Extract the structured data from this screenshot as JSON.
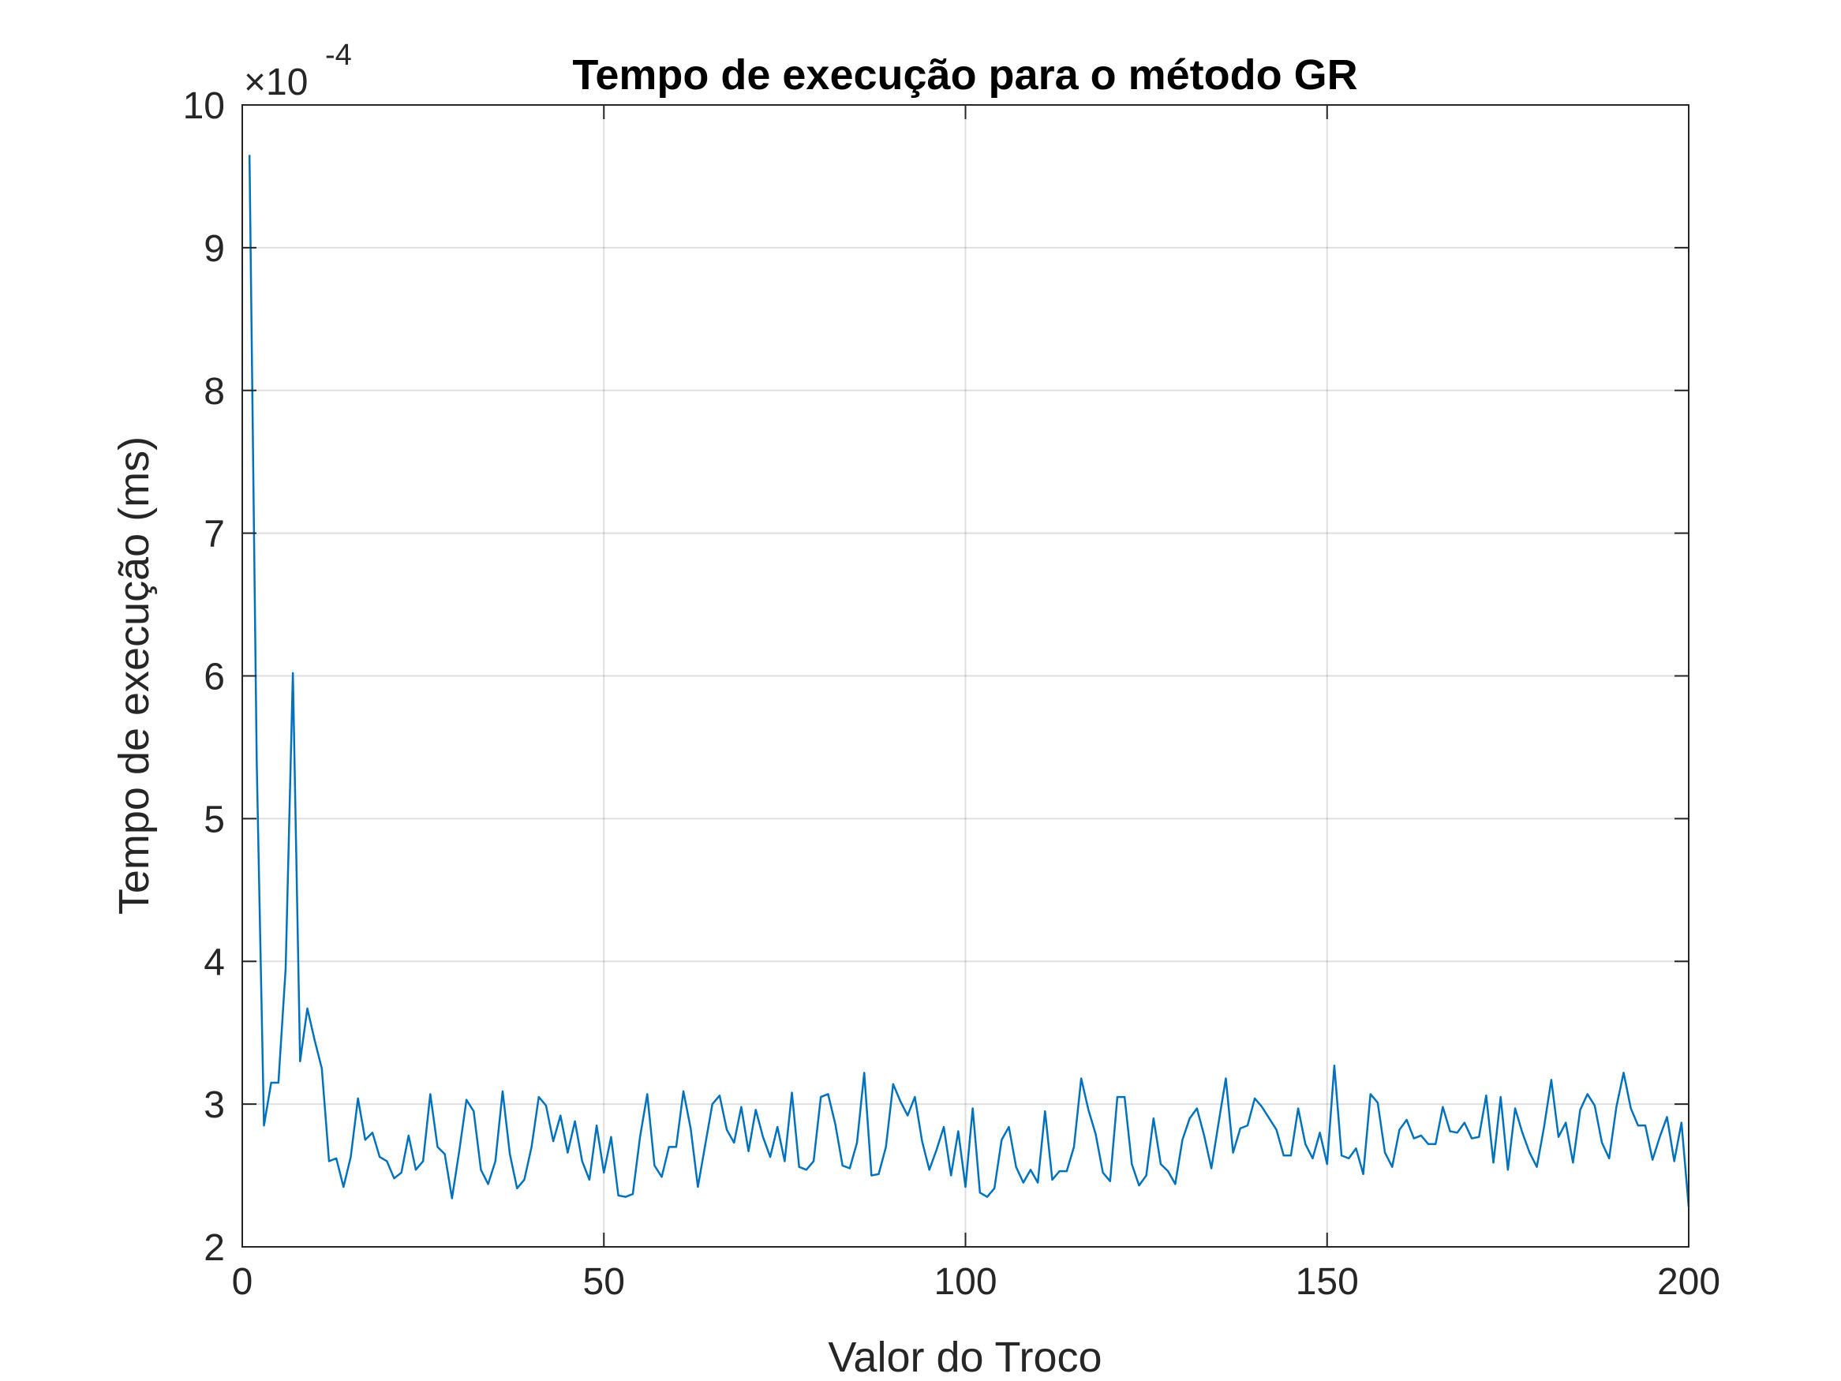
{
  "chart_data": {
    "type": "line",
    "title": "Tempo de execução para o método GR",
    "xlabel": "Valor do Troco",
    "ylabel": "Tempo de execução (ms)",
    "y_exponent_label": {
      "base": "×10",
      "exponent": "-4"
    },
    "xlim": [
      0,
      200
    ],
    "ylim": [
      2,
      10
    ],
    "y_scale_factor": 0.0001,
    "xticks": [
      0,
      50,
      100,
      150,
      200
    ],
    "yticks": [
      2,
      3,
      4,
      5,
      6,
      7,
      8,
      9,
      10
    ],
    "xtick_labels": [
      "0",
      "50",
      "100",
      "150",
      "200"
    ],
    "ytick_labels": [
      "2",
      "3",
      "4",
      "5",
      "6",
      "7",
      "8",
      "9",
      "10"
    ],
    "grid": true,
    "line_color": "#0072BD",
    "series": [
      {
        "x": [
          1,
          2,
          3,
          4,
          5,
          6,
          7,
          8,
          9,
          10,
          11,
          12,
          13,
          14,
          15,
          16,
          17,
          18,
          19,
          20,
          21,
          22,
          23,
          24,
          25,
          26,
          27,
          28,
          29,
          30,
          31,
          32,
          33,
          34,
          35,
          36,
          37,
          38,
          39,
          40,
          41,
          42,
          43,
          44,
          45,
          46,
          47,
          48,
          49,
          50,
          51,
          52,
          53,
          54,
          55,
          56,
          57,
          58,
          59,
          60,
          61,
          62,
          63,
          64,
          65,
          66,
          67,
          68,
          69,
          70,
          71,
          72,
          73,
          74,
          75,
          76,
          77,
          78,
          79,
          80,
          81,
          82,
          83,
          84,
          85,
          86,
          87,
          88,
          89,
          90,
          91,
          92,
          93,
          94,
          95,
          96,
          97,
          98,
          99,
          100,
          101,
          102,
          103,
          104,
          105,
          106,
          107,
          108,
          109,
          110,
          111,
          112,
          113,
          114,
          115,
          116,
          117,
          118,
          119,
          120,
          121,
          122,
          123,
          124,
          125,
          126,
          127,
          128,
          129,
          130,
          131,
          132,
          133,
          134,
          135,
          136,
          137,
          138,
          139,
          140,
          141,
          142,
          143,
          144,
          145,
          146,
          147,
          148,
          149,
          150,
          151,
          152,
          153,
          154,
          155,
          156,
          157,
          158,
          159,
          160,
          161,
          162,
          163,
          164,
          165,
          166,
          167,
          168,
          169,
          170,
          171,
          172,
          173,
          174,
          175,
          176,
          177,
          178,
          179,
          180,
          181,
          182,
          183,
          184,
          185,
          186,
          187,
          188,
          189,
          190,
          191,
          192,
          193,
          194,
          195,
          196,
          197,
          198,
          199,
          200
        ],
        "y": [
          9.65,
          5.4,
          2.85,
          3.15,
          3.15,
          3.95,
          6.02,
          3.3,
          3.67,
          3.45,
          3.25,
          2.6,
          2.62,
          2.42,
          2.63,
          3.04,
          2.75,
          2.8,
          2.63,
          2.6,
          2.48,
          2.52,
          2.78,
          2.54,
          2.6,
          3.07,
          2.7,
          2.65,
          2.34,
          2.67,
          3.03,
          2.95,
          2.54,
          2.44,
          2.6,
          3.09,
          2.65,
          2.41,
          2.47,
          2.7,
          3.05,
          2.99,
          2.74,
          2.92,
          2.66,
          2.88,
          2.6,
          2.47,
          2.85,
          2.52,
          2.77,
          2.36,
          2.35,
          2.37,
          2.77,
          3.07,
          2.57,
          2.49,
          2.7,
          2.7,
          3.09,
          2.83,
          2.42,
          2.71,
          3.0,
          3.06,
          2.82,
          2.73,
          2.98,
          2.67,
          2.96,
          2.77,
          2.63,
          2.84,
          2.6,
          3.08,
          2.56,
          2.54,
          2.6,
          3.05,
          3.07,
          2.86,
          2.57,
          2.55,
          2.73,
          3.22,
          2.5,
          2.51,
          2.7,
          3.14,
          3.02,
          2.92,
          3.05,
          2.74,
          2.54,
          2.68,
          2.84,
          2.5,
          2.81,
          2.42,
          2.97,
          2.38,
          2.35,
          2.41,
          2.75,
          2.84,
          2.56,
          2.45,
          2.54,
          2.45,
          2.95,
          2.47,
          2.53,
          2.53,
          2.7,
          3.18,
          2.96,
          2.79,
          2.52,
          2.46,
          3.05,
          3.05,
          2.58,
          2.43,
          2.5,
          2.9,
          2.58,
          2.53,
          2.44,
          2.75,
          2.9,
          2.97,
          2.78,
          2.55,
          2.87,
          3.18,
          2.66,
          2.83,
          2.85,
          3.04,
          2.98,
          2.9,
          2.82,
          2.64,
          2.64,
          2.97,
          2.72,
          2.62,
          2.8,
          2.58,
          3.27,
          2.64,
          2.62,
          2.69,
          2.51,
          3.07,
          3.01,
          2.66,
          2.56,
          2.82,
          2.89,
          2.76,
          2.78,
          2.72,
          2.72,
          2.98,
          2.81,
          2.8,
          2.87,
          2.76,
          2.77,
          3.06,
          2.59,
          3.05,
          2.54,
          2.97,
          2.8,
          2.66,
          2.56,
          2.84,
          3.17,
          2.77,
          2.87,
          2.59,
          2.96,
          3.07,
          2.99,
          2.73,
          2.62,
          2.98,
          3.22,
          2.97,
          2.85,
          2.85,
          2.61,
          2.77,
          2.91,
          2.6,
          2.87,
          2.28
        ]
      }
    ]
  }
}
